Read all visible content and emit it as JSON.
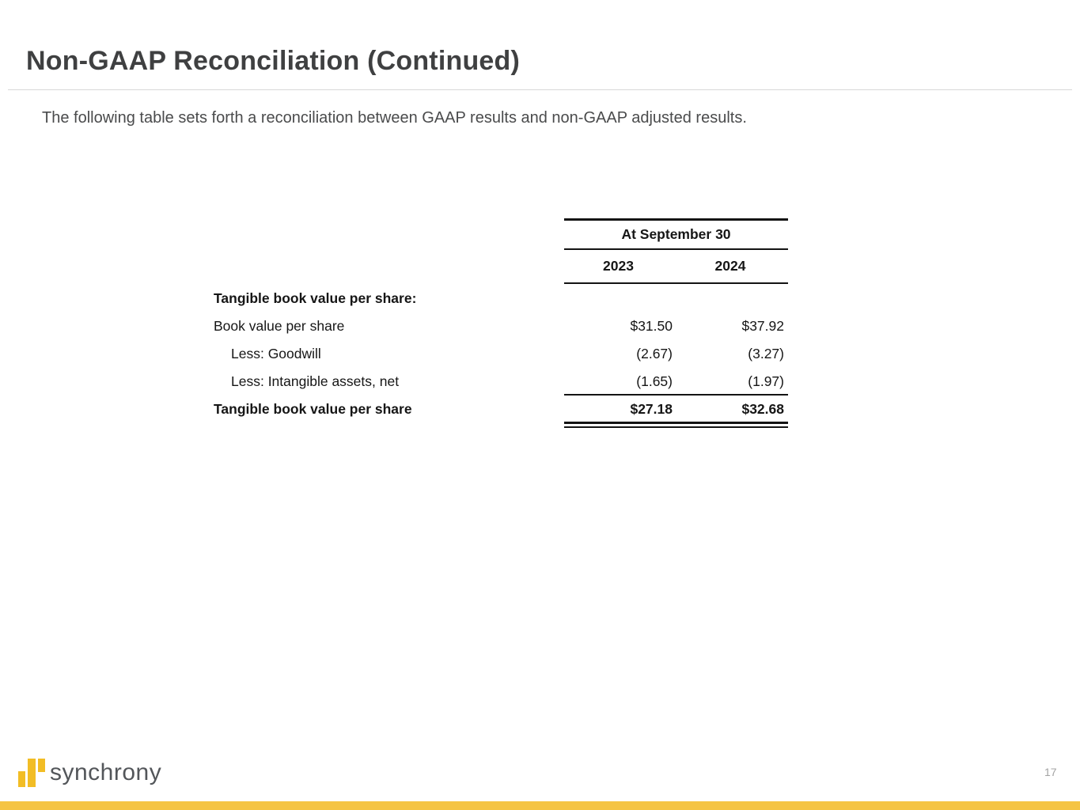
{
  "slide": {
    "title": "Non-GAAP Reconciliation (Continued)",
    "subtitle": "The following table sets forth a reconciliation between GAAP results and non-GAAP adjusted results."
  },
  "table": {
    "span_header": "At September 30",
    "years": [
      "2023",
      "2024"
    ],
    "section_label": "Tangible book value per share:",
    "rows": [
      {
        "label": "Book value per share",
        "values": [
          "$31.50",
          "$37.92"
        ]
      },
      {
        "label": "Less: Goodwill",
        "values": [
          "(2.67)",
          "(3.27)"
        ]
      },
      {
        "label": "Less: Intangible assets, net",
        "values": [
          "(1.65)",
          "(1.97)"
        ]
      },
      {
        "label": "Tangible book value per share",
        "values": [
          "$27.18",
          "$32.68"
        ]
      }
    ]
  },
  "footer": {
    "logo_text": "synchrony",
    "page_number": "17"
  },
  "colors": {
    "brand_gold": "#f2bd25",
    "footer_bar_gold": "#f5c443",
    "title_text": "#3f4041",
    "table_text": "#161616",
    "page_number_text": "#a3a3a3"
  }
}
